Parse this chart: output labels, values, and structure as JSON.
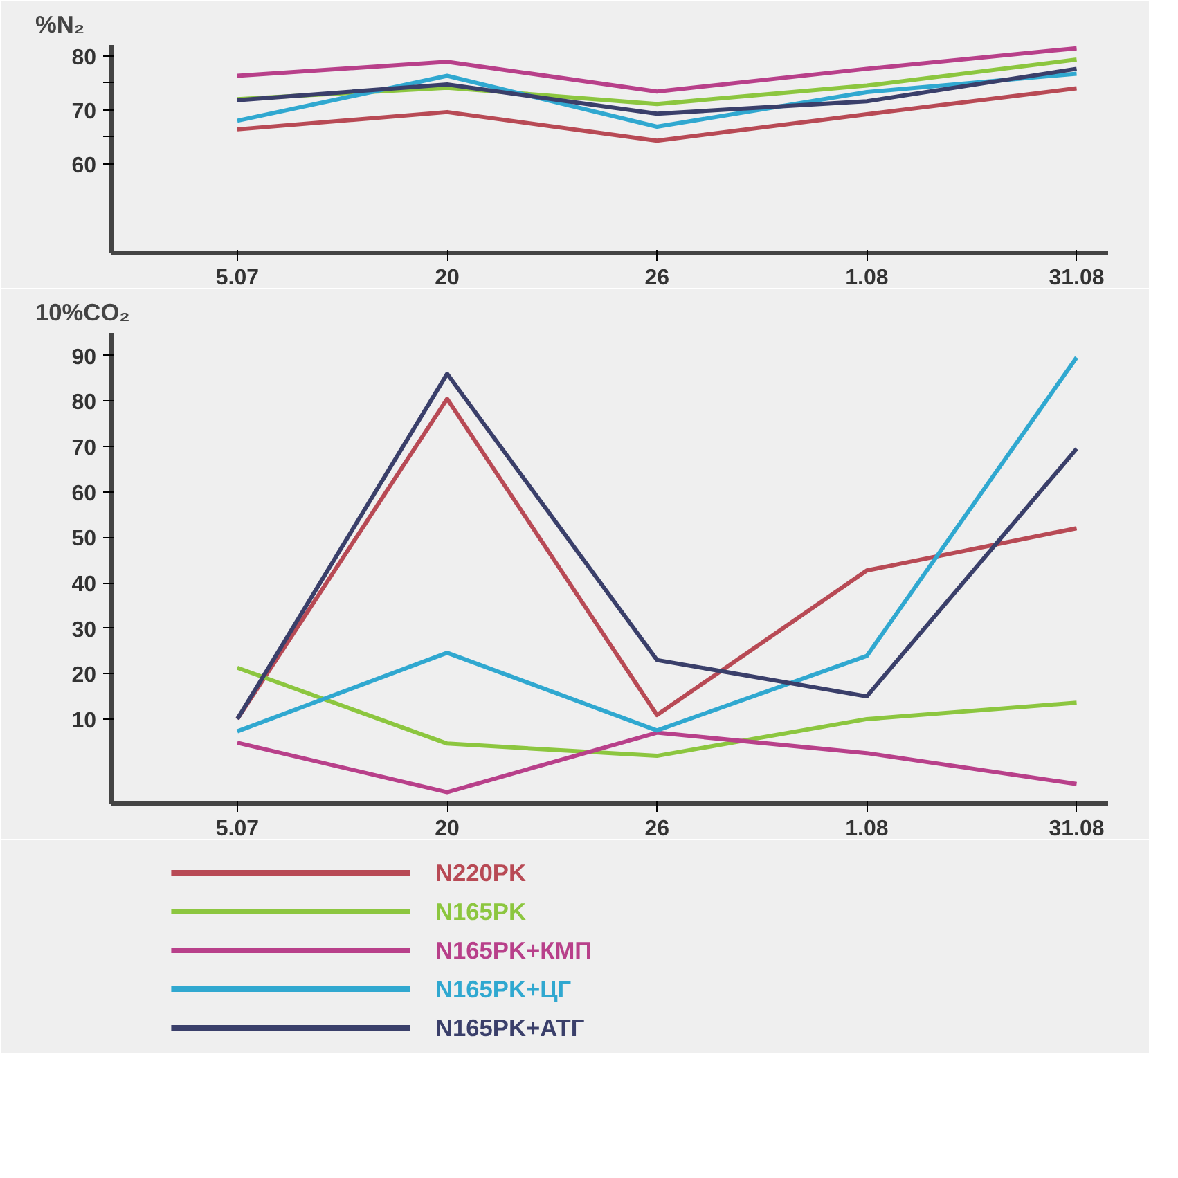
{
  "chart_data": [
    {
      "type": "line",
      "ylabel": "%N₂",
      "categories": [
        "5.07",
        "20",
        "26",
        "1.08",
        "31.08"
      ],
      "ylim": [
        43.6,
        82
      ],
      "yticks": [
        60,
        {
          "value": 65,
          "label": null
        },
        70,
        {
          "value": 75,
          "label": null
        },
        80
      ],
      "grid": false,
      "series": [
        {
          "color": "#b84a55",
          "values": [
            66.4,
            69.6,
            64.3,
            69.2,
            74
          ]
        },
        {
          "color": "#8cc63f",
          "values": [
            72,
            74.1,
            71.1,
            74.5,
            79.3
          ]
        },
        {
          "color": "#b8408a",
          "values": [
            76.3,
            78.9,
            73.4,
            77.6,
            81.4
          ]
        },
        {
          "color": "#30a8d0",
          "values": [
            68,
            76.3,
            66.9,
            73.3,
            76.7
          ]
        },
        {
          "color": "#3a3f6a",
          "values": [
            71.8,
            74.7,
            69.3,
            71.6,
            77.6
          ]
        }
      ]
    },
    {
      "type": "line",
      "ylabel": "10%CO₂",
      "categories": [
        "5.07",
        "20",
        "26",
        "1.08",
        "31.08"
      ],
      "ylim": [
        -8.6,
        95
      ],
      "yticks": [
        10,
        20,
        30,
        40,
        50,
        60,
        70,
        80,
        90
      ],
      "grid": false,
      "legend": "bottom",
      "series": [
        {
          "name": "N220PK",
          "color": "#b84a55",
          "values": [
            10,
            80.5,
            10.9,
            42.7,
            52
          ]
        },
        {
          "name": "N165PK",
          "color": "#8cc63f",
          "values": [
            21.3,
            4.6,
            1.9,
            10,
            13.6
          ]
        },
        {
          "name": "N165PK+КМП",
          "color": "#b8408a",
          "values": [
            4.8,
            -6.1,
            7,
            2.5,
            -4.3
          ]
        },
        {
          "name": "N165PK+ЦГ",
          "color": "#30a8d0",
          "values": [
            7.3,
            24.6,
            7.5,
            23.9,
            89.6
          ]
        },
        {
          "name": "N165PK+АТГ",
          "color": "#3a3f6a",
          "values": [
            10,
            86,
            23,
            15,
            69.5
          ]
        }
      ]
    }
  ]
}
